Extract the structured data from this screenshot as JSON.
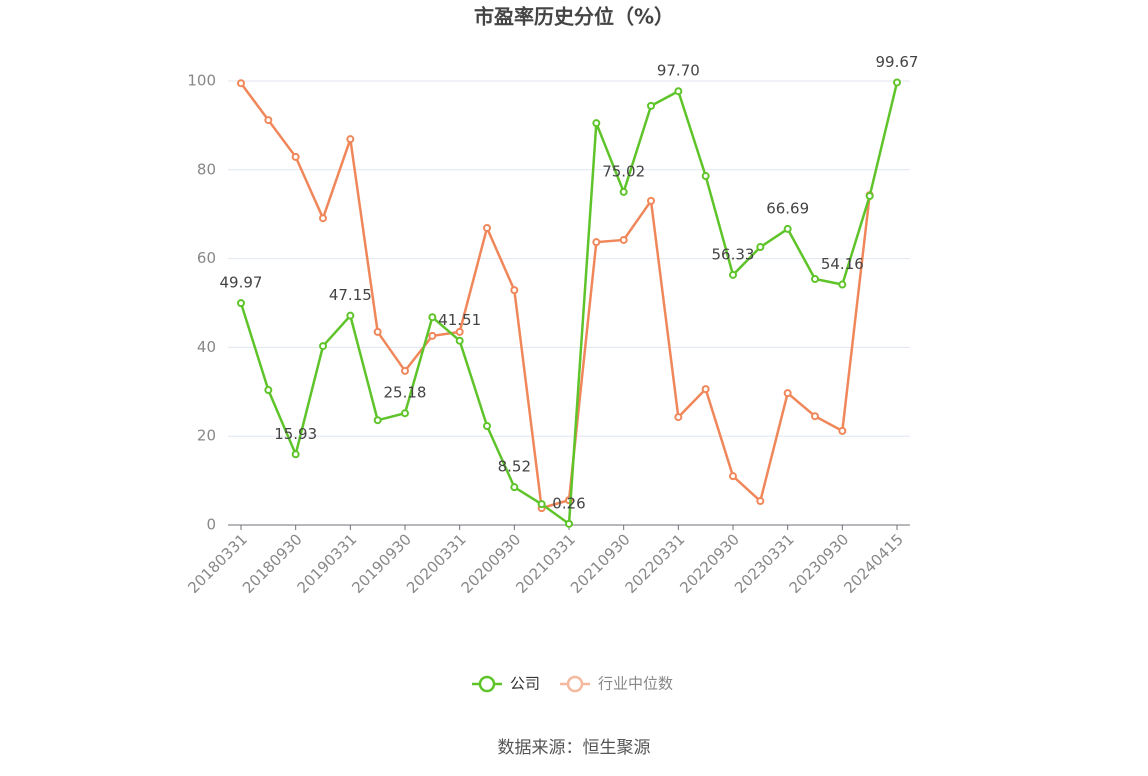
{
  "chart_data": {
    "type": "line",
    "title": "市盈率历史分位（%）",
    "source": "数据来源：恒生聚源",
    "categories": [
      "20180331",
      null,
      "20180930",
      null,
      "20190331",
      null,
      "20190930",
      null,
      "20200331",
      null,
      "20200930",
      null,
      "20210331",
      null,
      "20210930",
      null,
      "20220331",
      null,
      "20220930",
      null,
      "20230331",
      null,
      "20230930",
      null,
      "20240415"
    ],
    "series": [
      {
        "name": "公司",
        "color": "#5ec42a",
        "values": [
          49.97,
          30.4,
          15.93,
          40.3,
          47.15,
          23.6,
          25.18,
          46.8,
          41.51,
          22.3,
          8.52,
          4.7,
          0.26,
          90.5,
          75.02,
          94.4,
          97.7,
          78.6,
          56.33,
          62.6,
          66.69,
          55.4,
          54.16,
          74.1,
          99.67
        ],
        "value_labels": [
          "49.97",
          null,
          "15.93",
          null,
          "47.15",
          null,
          "25.18",
          null,
          "41.51",
          null,
          "8.52",
          null,
          "0.26",
          null,
          "75.02",
          null,
          "97.70",
          null,
          "56.33",
          null,
          "66.69",
          null,
          "54.16",
          null,
          "99.67"
        ]
      },
      {
        "name": "行业中位数",
        "color": "#f0875a",
        "values": [
          99.5,
          91.2,
          82.9,
          69.1,
          86.9,
          43.5,
          34.7,
          42.6,
          43.5,
          66.9,
          52.9,
          3.8,
          5.6,
          63.7,
          64.2,
          73.0,
          24.3,
          30.6,
          11.0,
          5.4,
          29.7,
          24.5,
          21.2,
          74.3,
          null
        ]
      }
    ],
    "ylim": [
      0,
      100
    ],
    "yticks": [
      0,
      20,
      40,
      60,
      80,
      100
    ],
    "grid": true
  }
}
